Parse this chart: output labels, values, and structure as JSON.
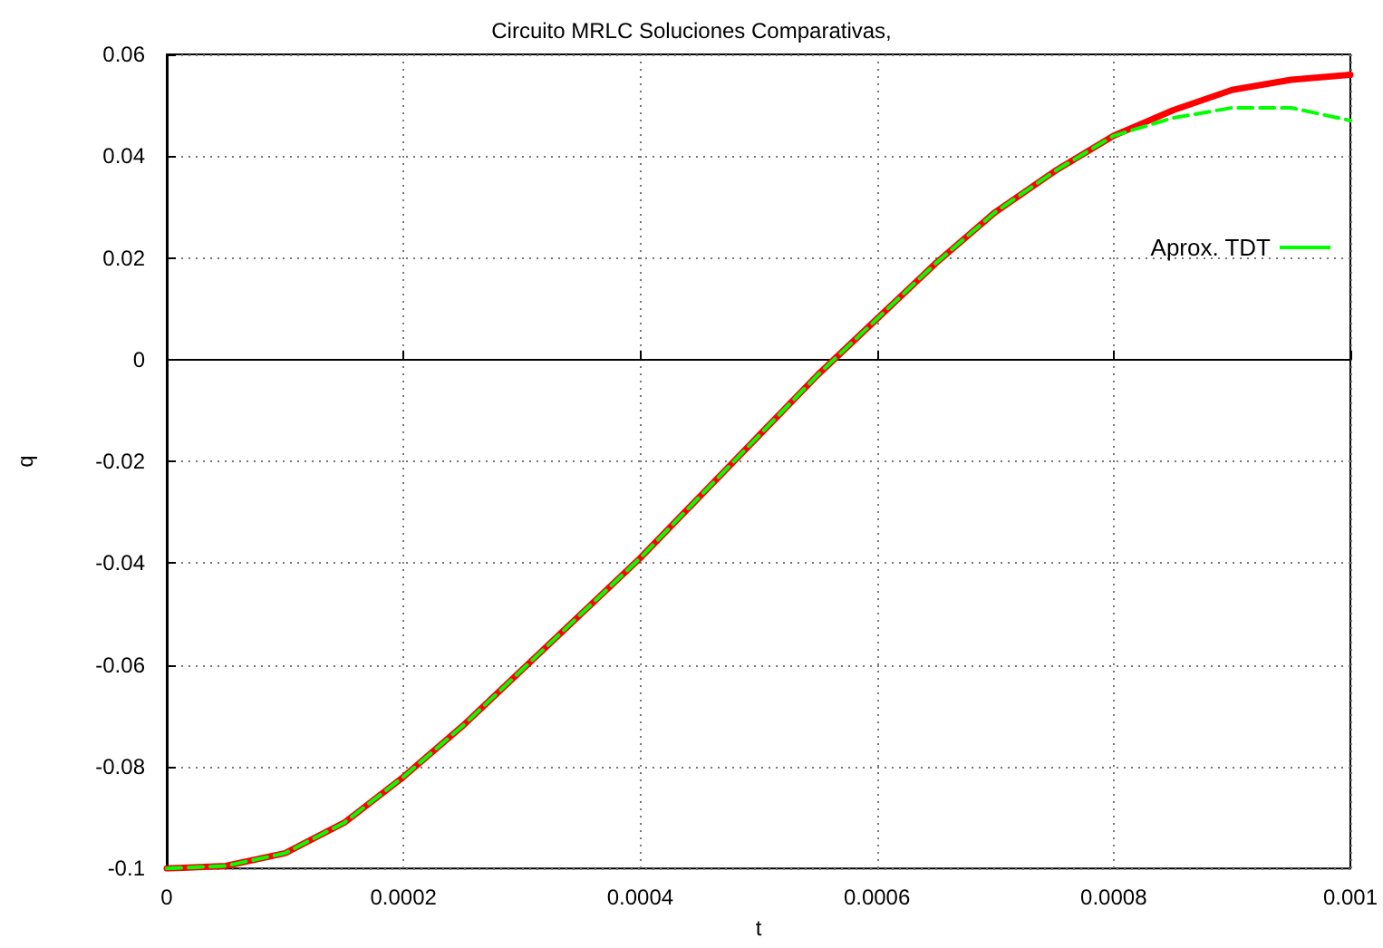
{
  "chart_data": {
    "type": "line",
    "title": "Circuito MRLC Soluciones Comparativas,",
    "xlabel": "t",
    "ylabel": "q",
    "x": [
      0,
      5e-05,
      0.0001,
      0.00015,
      0.0002,
      0.00025,
      0.0003,
      0.00035,
      0.0004,
      0.00045,
      0.0005,
      0.00055,
      0.0006,
      0.00065,
      0.0007,
      0.00075,
      0.0008,
      0.00085,
      0.0009,
      0.00095,
      0.001
    ],
    "series": [
      {
        "color": "#ff0000",
        "line_style": "solid",
        "values": [
          -0.1,
          -0.0995,
          -0.097,
          -0.091,
          -0.082,
          -0.072,
          -0.061,
          -0.05,
          -0.039,
          -0.027,
          -0.015,
          -0.003,
          0.008,
          0.019,
          0.029,
          0.037,
          0.044,
          0.049,
          0.053,
          0.055,
          0.056
        ]
      },
      {
        "name": "Aprox. TDT",
        "color": "#00ff00",
        "line_style": "dashed",
        "values": [
          -0.1,
          -0.0995,
          -0.097,
          -0.091,
          -0.082,
          -0.072,
          -0.061,
          -0.05,
          -0.039,
          -0.027,
          -0.015,
          -0.003,
          0.008,
          0.019,
          0.029,
          0.037,
          0.044,
          0.0475,
          0.0495,
          0.0495,
          0.047
        ]
      }
    ],
    "xlim": [
      0,
      0.001
    ],
    "xticks": [
      0,
      0.0002,
      0.0004,
      0.0006,
      0.0008,
      0.001
    ],
    "ylim": [
      -0.1,
      0.06
    ],
    "yticks": [
      -0.1,
      -0.08,
      -0.06,
      -0.04,
      -0.02,
      0,
      0.02,
      0.04,
      0.06
    ],
    "grid": true,
    "legend": "top right",
    "marker": "none"
  }
}
